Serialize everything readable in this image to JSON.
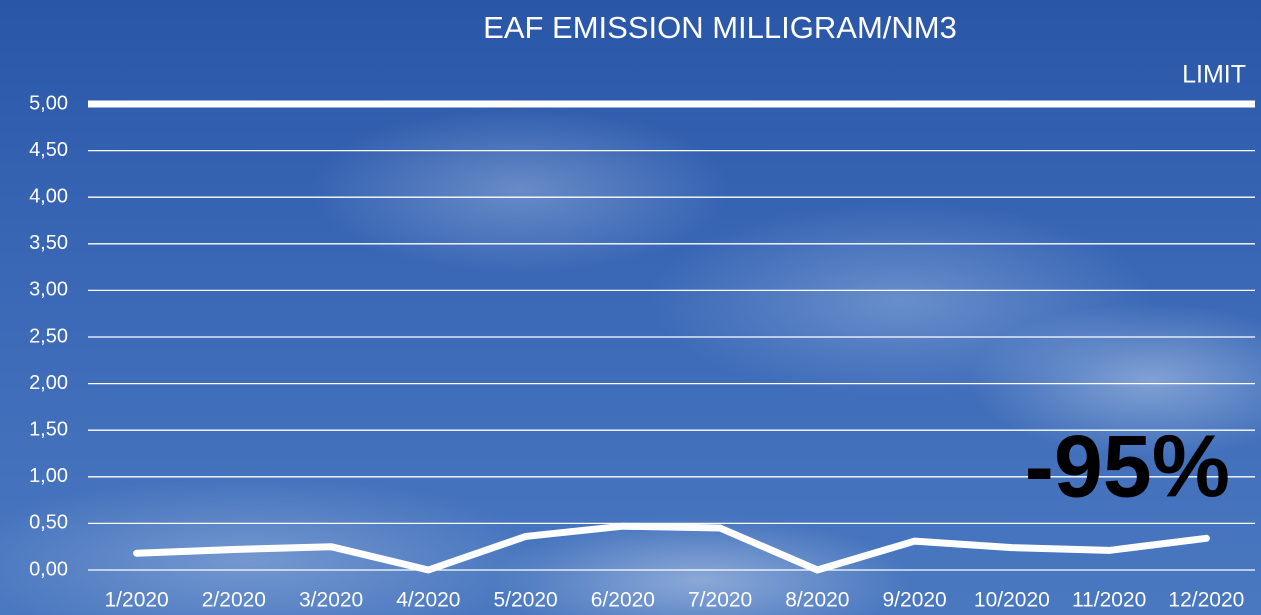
{
  "chart_data": {
    "type": "line",
    "title": "EAF EMISSION MILLIGRAM/NM3",
    "categories": [
      "1/2020",
      "2/2020",
      "3/2020",
      "4/2020",
      "5/2020",
      "6/2020",
      "7/2020",
      "8/2020",
      "9/2020",
      "10/2020",
      "11/2020",
      "12/2020"
    ],
    "values": [
      0.18,
      0.22,
      0.25,
      0,
      0.36,
      0.47,
      0.45,
      0,
      0.31,
      0.24,
      0.21,
      0.34
    ],
    "color": "#ffffff",
    "ylim": [
      0,
      5
    ],
    "yticks": [
      {
        "value": 0,
        "label": "0,00"
      },
      {
        "value": 0.5,
        "label": "0,50"
      },
      {
        "value": 1,
        "label": "1,00"
      },
      {
        "value": 1.5,
        "label": "1,50"
      },
      {
        "value": 2,
        "label": "2,00"
      },
      {
        "value": 2.5,
        "label": "2,50"
      },
      {
        "value": 3,
        "label": "3,00"
      },
      {
        "value": 3.5,
        "label": "3,50"
      },
      {
        "value": 4,
        "label": "4,00"
      },
      {
        "value": 4.5,
        "label": "4,50"
      },
      {
        "value": 5,
        "label": "5,00"
      }
    ],
    "grid": true,
    "limit": {
      "label": "LIMIT",
      "value": 5
    },
    "annotation": "-95%"
  }
}
